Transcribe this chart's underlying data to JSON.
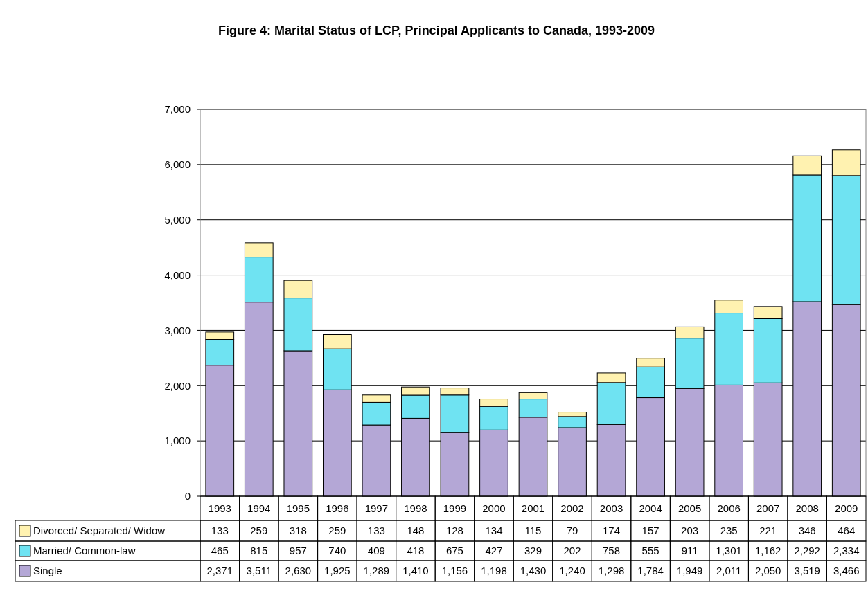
{
  "chart_data": {
    "type": "bar",
    "title": "Figure 4: Marital Status of LCP, Principal Applicants to Canada, 1993-2009",
    "categories": [
      "1993",
      "1994",
      "1995",
      "1996",
      "1997",
      "1998",
      "1999",
      "2000",
      "2001",
      "2002",
      "2003",
      "2004",
      "2005",
      "2006",
      "2007",
      "2008",
      "2009"
    ],
    "stacked": true,
    "series": [
      {
        "name": "Single",
        "color": "#b4a7d6",
        "values": [
          2371,
          3511,
          2630,
          1925,
          1289,
          1410,
          1156,
          1198,
          1430,
          1240,
          1298,
          1784,
          1949,
          2011,
          2050,
          3519,
          3466
        ],
        "value_labels": [
          "2,371",
          "3,511",
          "2,630",
          "1,925",
          "1,289",
          "1,410",
          "1,156",
          "1,198",
          "1,430",
          "1,240",
          "1,298",
          "1,784",
          "1,949",
          "2,011",
          "2,050",
          "3,519",
          "3,466"
        ]
      },
      {
        "name": "Married/ Common-law",
        "color": "#6fe3f2",
        "values": [
          465,
          815,
          957,
          740,
          409,
          418,
          675,
          427,
          329,
          202,
          758,
          555,
          911,
          1301,
          1162,
          2292,
          2334
        ],
        "value_labels": [
          "465",
          "815",
          "957",
          "740",
          "409",
          "418",
          "675",
          "427",
          "329",
          "202",
          "758",
          "555",
          "911",
          "1,301",
          "1,162",
          "2,292",
          "2,334"
        ]
      },
      {
        "name": "Divorced/ Separated/ Widow",
        "color": "#fff2b0",
        "values": [
          133,
          259,
          318,
          259,
          133,
          148,
          128,
          134,
          115,
          79,
          174,
          157,
          203,
          235,
          221,
          346,
          464
        ],
        "value_labels": [
          "133",
          "259",
          "318",
          "259",
          "133",
          "148",
          "128",
          "134",
          "115",
          "79",
          "174",
          "157",
          "203",
          "235",
          "221",
          "346",
          "464"
        ]
      }
    ],
    "ylim": [
      0,
      7000
    ],
    "yticks": [
      0,
      {
        "value": 1000,
        "label": "1,000"
      },
      {
        "value": 2000,
        "label": "2,000"
      },
      {
        "value": 3000,
        "label": "3,000"
      },
      {
        "value": 4000,
        "label": "4,000"
      },
      {
        "value": 5000,
        "label": "5,000"
      },
      {
        "value": 6000,
        "label": "6,000"
      },
      {
        "value": 7000,
        "label": "7,000"
      }
    ],
    "grid": "y",
    "legend": "bottom left"
  }
}
